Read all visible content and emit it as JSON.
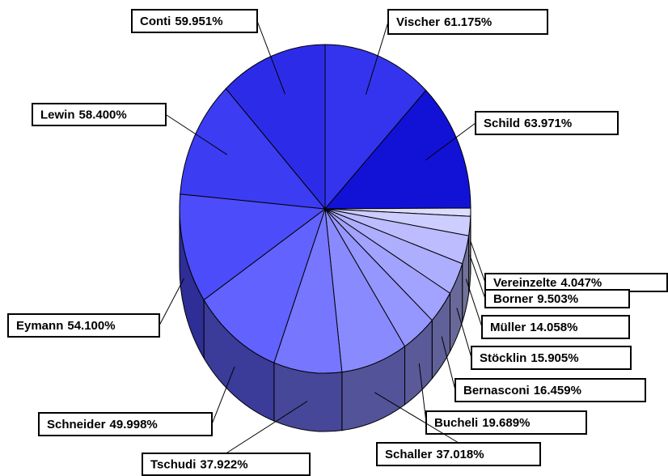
{
  "chart_data": {
    "type": "pie3d",
    "categories": [
      "Vischer",
      "Schild",
      "Vereinzelte",
      "Borner",
      "Müller",
      "Stöcklin",
      "Bernasconi",
      "Bucheli",
      "Schaller",
      "Tschudi",
      "Schneider",
      "Eymann",
      "Lewin",
      "Conti"
    ],
    "values": [
      61.175,
      63.971,
      4.047,
      9.503,
      14.058,
      15.905,
      16.459,
      19.689,
      37.018,
      37.922,
      49.998,
      54.1,
      58.4,
      59.951
    ],
    "value_labels": [
      "61.175%",
      "63.971%",
      "4.047%",
      "9.503%",
      "14.058%",
      "15.905%",
      "16.459%",
      "19.689%",
      "37.018%",
      "37.922%",
      "49.998%",
      "54.100%",
      "58.400%",
      "59.951%"
    ],
    "colors": [
      "#3434ee",
      "#1212d6",
      "#dcdcff",
      "#cdcdff",
      "#bcbcff",
      "#aeaeff",
      "#a2a2ff",
      "#9696ff",
      "#8a8aff",
      "#7676ff",
      "#6262ff",
      "#4c4cfa",
      "#3c3cf2",
      "#2c2ce8"
    ]
  }
}
